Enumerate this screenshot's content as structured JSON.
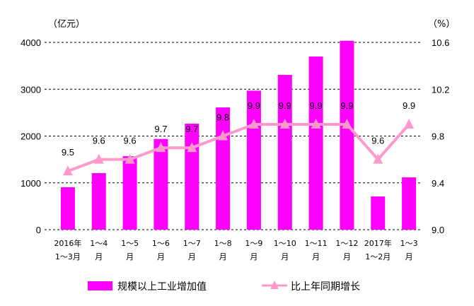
{
  "chart_data": {
    "type": "bar+line",
    "categories": [
      [
        "2016年",
        "1～3月"
      ],
      [
        "1～4",
        "月"
      ],
      [
        "1～5",
        "月"
      ],
      [
        "1～6",
        "月"
      ],
      [
        "1～7",
        "月"
      ],
      [
        "1～8",
        "月"
      ],
      [
        "1～9",
        "月"
      ],
      [
        "1～10",
        "月"
      ],
      [
        "1～11",
        "月"
      ],
      [
        "1～12",
        "月"
      ],
      [
        "2017年",
        "1～2月"
      ],
      [
        "1～3",
        "月"
      ]
    ],
    "series": [
      {
        "name": "规模以上工业增加值",
        "type": "bar",
        "axis": "left",
        "color": "#ff00ff",
        "values": [
          906,
          1208,
          1570,
          1937,
          2264,
          2611,
          2969,
          3306,
          3698,
          4035,
          709,
          1117
        ]
      },
      {
        "name": "比上年同期增长",
        "type": "line",
        "axis": "right",
        "color": "#ff99cc",
        "marker": "triangle",
        "values": [
          9.5,
          9.6,
          9.6,
          9.7,
          9.7,
          9.8,
          9.9,
          9.9,
          9.9,
          9.9,
          9.6,
          9.9
        ],
        "labels": [
          "9.5",
          "9.6",
          "9.6",
          "9.7",
          "9.7",
          "9.8",
          "9.9",
          "9.9",
          "9.9",
          "9.9",
          "9.6",
          "9.9"
        ]
      }
    ],
    "left_axis": {
      "label": "（亿元）",
      "ylim": [
        0,
        4000
      ],
      "ticks": [
        "0",
        "1000",
        "2000",
        "3000",
        "4000"
      ]
    },
    "right_axis": {
      "label": "（%）",
      "ylim": [
        9.0,
        10.6
      ],
      "ticks": [
        "9.0",
        "9.4",
        "9.8",
        "10.2",
        "10.6"
      ]
    },
    "grid": true,
    "legend": "bottom"
  }
}
